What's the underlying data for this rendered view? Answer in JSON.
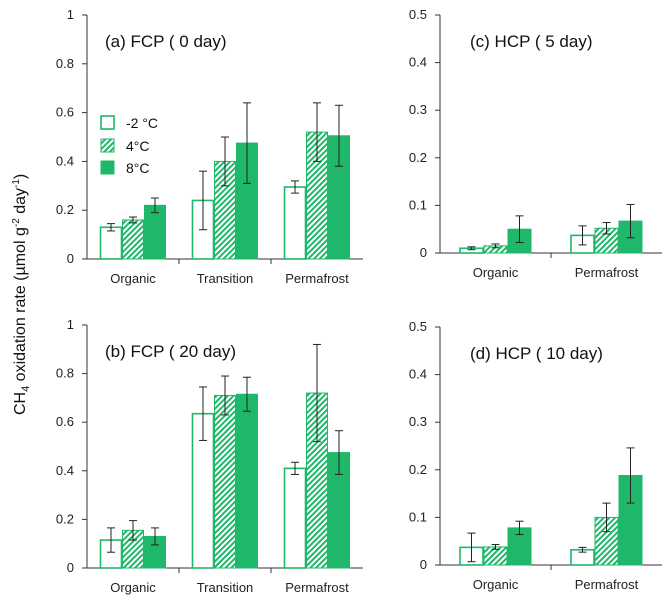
{
  "colors": {
    "green": "#1fb86a",
    "hatch_bg": "#ffffff",
    "axis": "#333333"
  },
  "ylabel": {
    "main": "CH",
    "sub4": "4",
    "rest": " oxidation rate (µmol g",
    "sup1": "-2",
    "mid": " day",
    "sup2": "-1",
    "end": ")"
  },
  "legend": {
    "entries": [
      "-2 °C",
      "4°C",
      "8°C"
    ]
  },
  "chart_data": [
    {
      "type": "bar",
      "panel": "a",
      "title": "(a) FCP ( 0 day)",
      "categories": [
        "Organic",
        "Transition",
        "Permafrost"
      ],
      "ylim": [
        0,
        1
      ],
      "yticks": [
        "0",
        "0.2",
        "0.4",
        "0.6",
        "0.8",
        "1"
      ],
      "series": [
        {
          "name": "-2 °C",
          "style": "open",
          "values": [
            0.13,
            0.24,
            0.295
          ],
          "errors": [
            0.015,
            0.12,
            0.025
          ]
        },
        {
          "name": "4°C",
          "style": "hatch",
          "values": [
            0.16,
            0.4,
            0.52
          ],
          "errors": [
            0.012,
            0.1,
            0.12
          ]
        },
        {
          "name": "8°C",
          "style": "solid",
          "values": [
            0.22,
            0.475,
            0.505
          ],
          "errors": [
            0.03,
            0.165,
            0.125
          ]
        }
      ]
    },
    {
      "type": "bar",
      "panel": "b",
      "title": "(b) FCP ( 20 day)",
      "categories": [
        "Organic",
        "Transition",
        "Permafrost"
      ],
      "ylim": [
        0,
        1
      ],
      "yticks": [
        "0",
        "0.2",
        "0.4",
        "0.6",
        "0.8",
        "1"
      ],
      "series": [
        {
          "name": "-2 °C",
          "style": "open",
          "values": [
            0.115,
            0.635,
            0.41
          ],
          "errors": [
            0.05,
            0.11,
            0.025
          ]
        },
        {
          "name": "4°C",
          "style": "hatch",
          "values": [
            0.155,
            0.71,
            0.72
          ],
          "errors": [
            0.04,
            0.08,
            0.2
          ]
        },
        {
          "name": "8°C",
          "style": "solid",
          "values": [
            0.13,
            0.715,
            0.475
          ],
          "errors": [
            0.035,
            0.07,
            0.09
          ]
        }
      ]
    },
    {
      "type": "bar",
      "panel": "c",
      "title": "(c) HCP ( 5 day)",
      "categories": [
        "Organic",
        "Permafrost"
      ],
      "ylim": [
        0,
        0.5
      ],
      "yticks": [
        "0",
        "0.1",
        "0.2",
        "0.3",
        "0.4",
        "0.5"
      ],
      "series": [
        {
          "name": "-2 °C",
          "style": "open",
          "values": [
            0.01,
            0.037
          ],
          "errors": [
            0.003,
            0.02
          ]
        },
        {
          "name": "4°C",
          "style": "hatch",
          "values": [
            0.015,
            0.052
          ],
          "errors": [
            0.004,
            0.012
          ]
        },
        {
          "name": "8°C",
          "style": "solid",
          "values": [
            0.05,
            0.067
          ],
          "errors": [
            0.028,
            0.035
          ]
        }
      ]
    },
    {
      "type": "bar",
      "panel": "d",
      "title": "(d) HCP ( 10 day)",
      "categories": [
        "Organic",
        "Permafrost"
      ],
      "ylim": [
        0,
        0.5
      ],
      "yticks": [
        "0",
        "0.1",
        "0.2",
        "0.3",
        "0.4",
        "0.5"
      ],
      "series": [
        {
          "name": "-2 °C",
          "style": "open",
          "values": [
            0.037,
            0.032
          ],
          "errors": [
            0.03,
            0.005
          ]
        },
        {
          "name": "4°C",
          "style": "hatch",
          "values": [
            0.038,
            0.1
          ],
          "errors": [
            0.005,
            0.03
          ]
        },
        {
          "name": "8°C",
          "style": "solid",
          "values": [
            0.078,
            0.188
          ],
          "errors": [
            0.014,
            0.058
          ]
        }
      ]
    }
  ]
}
